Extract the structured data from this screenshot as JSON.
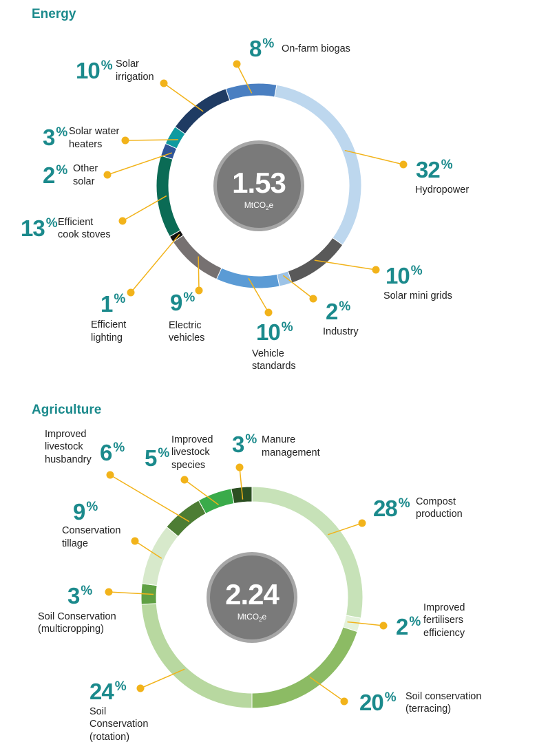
{
  "unit_main": "MtCO",
  "unit_sub": "2",
  "unit_tail": "e",
  "chart_data": [
    {
      "type": "pie",
      "donut": true,
      "title": "Energy",
      "total": "1.53",
      "slices": [
        {
          "pct": "32",
          "label": [
            "Hydropower"
          ],
          "color": "#bdd7ee"
        },
        {
          "pct": "10",
          "label": [
            "Solar mini grids"
          ],
          "color": "#595959"
        },
        {
          "pct": "2",
          "label": [
            "Industry"
          ],
          "color": "#9dc3e6"
        },
        {
          "pct": "10",
          "label": [
            "Vehicle",
            "standards"
          ],
          "color": "#5b9bd5"
        },
        {
          "pct": "9",
          "label": [
            "Electric",
            "vehicles"
          ],
          "color": "#767171"
        },
        {
          "pct": "1",
          "label": [
            "Efficient",
            "lighting"
          ],
          "color": "#111111"
        },
        {
          "pct": "13",
          "label": [
            "Efficient",
            "cook stoves"
          ],
          "color": "#0b6b55"
        },
        {
          "pct": "2",
          "label": [
            "Other",
            "solar"
          ],
          "color": "#2f5597"
        },
        {
          "pct": "3",
          "label": [
            "Solar water",
            "heaters"
          ],
          "color": "#0e9aa0"
        },
        {
          "pct": "10",
          "label": [
            "Solar",
            "irrigation"
          ],
          "color": "#1f3b63"
        },
        {
          "pct": "8",
          "label": [
            "On-farm biogas"
          ],
          "color": "#4a7fc1"
        }
      ]
    },
    {
      "type": "pie",
      "donut": true,
      "title": "Agriculture",
      "total": "2.24",
      "slices": [
        {
          "pct": "28",
          "label": [
            "Compost",
            "production"
          ],
          "color": "#c7e2b8"
        },
        {
          "pct": "2",
          "label": [
            "Improved",
            "fertilisers",
            "efficiency"
          ],
          "color": "#e4f2da"
        },
        {
          "pct": "20",
          "label": [
            "Soil conservation",
            "(terracing)"
          ],
          "color": "#8cbb64"
        },
        {
          "pct": "24",
          "label": [
            "Soil",
            "Conservation",
            "(rotation)"
          ],
          "color": "#b8d8a0"
        },
        {
          "pct": "3",
          "label": [
            "Soil Conservation",
            "(multicropping)"
          ],
          "color": "#5fa043"
        },
        {
          "pct": "9",
          "label": [
            "Conservation",
            "tillage"
          ],
          "color": "#d7e9cb"
        },
        {
          "pct": "6",
          "label": [
            "Improved",
            "livestock",
            "husbandry"
          ],
          "color": "#4d7d34"
        },
        {
          "pct": "5",
          "label": [
            "Improved",
            "livestock",
            "species"
          ],
          "color": "#3aab4a"
        },
        {
          "pct": "3",
          "label": [
            "Manure",
            "management"
          ],
          "color": "#2c4f22"
        }
      ]
    }
  ]
}
